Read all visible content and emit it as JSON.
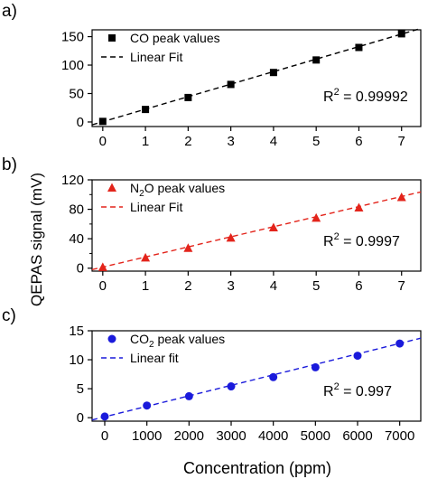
{
  "ylabel": "QEPAS signal (mV)",
  "xlabel": "Concentration (ppm)",
  "chart_data": [
    {
      "panel_label": "a)",
      "type": "scatter",
      "x": [
        0,
        1,
        2,
        3,
        4,
        5,
        6,
        7
      ],
      "xlim": [
        -0.25,
        7.45
      ],
      "xticks": [
        0,
        1,
        2,
        3,
        4,
        5,
        6,
        7
      ],
      "ylim": [
        -8,
        162
      ],
      "yticks": [
        0,
        50,
        100,
        150
      ],
      "color": "#000000",
      "marker": "square",
      "series": [
        {
          "name": "CO peak values",
          "values": [
            1,
            22,
            43,
            66,
            87,
            109,
            131,
            155
          ]
        }
      ],
      "fit": {
        "name": "Linear Fit",
        "slope": 22.0,
        "intercept": 0.5
      },
      "r2_label": "R",
      "r2_sup": "2",
      "r2_value": " = 0.99992",
      "legend_placement": "top-left"
    },
    {
      "panel_label": "b)",
      "type": "scatter",
      "x": [
        0,
        1,
        2,
        3,
        4,
        5,
        6,
        7
      ],
      "xlim": [
        -0.25,
        7.45
      ],
      "xticks": [
        0,
        1,
        2,
        3,
        4,
        5,
        6,
        7
      ],
      "ylim": [
        -4,
        120
      ],
      "yticks": [
        0,
        40,
        80,
        120
      ],
      "yminor": [
        20,
        60,
        100
      ],
      "color": "#e3241b",
      "marker": "triangle",
      "series": [
        {
          "name": "N2O peak values",
          "name_main": "N",
          "name_sub": "2",
          "name_rest": "O peak values",
          "values": [
            1,
            14,
            27,
            41,
            55,
            68,
            82,
            96
          ]
        }
      ],
      "fit": {
        "name": "Linear Fit",
        "slope": 13.7,
        "intercept": 1.5
      },
      "r2_label": "R",
      "r2_sup": "2",
      "r2_value": " = 0.9997",
      "legend_placement": "top-left"
    },
    {
      "panel_label": "c)",
      "type": "scatter",
      "x": [
        0,
        1000,
        2000,
        3000,
        4000,
        5000,
        6000,
        7000
      ],
      "xlim": [
        -300,
        7500
      ],
      "xticks": [
        0,
        1000,
        2000,
        3000,
        4000,
        5000,
        6000,
        7000
      ],
      "ylim": [
        -0.6,
        15
      ],
      "yticks": [
        0,
        5,
        10,
        15
      ],
      "color": "#1a1adb",
      "marker": "circle",
      "series": [
        {
          "name": "CO2 peak values",
          "name_main": "CO",
          "name_sub": "2",
          "name_rest": " peak values",
          "values": [
            0.2,
            2.1,
            3.7,
            5.4,
            7.0,
            8.7,
            10.7,
            12.8
          ]
        }
      ],
      "fit": {
        "name": "Linear fit",
        "slope": 0.00181,
        "intercept": 0.15
      },
      "r2_label": "R",
      "r2_sup": "2",
      "r2_value": " = 0.997",
      "legend_placement": "top-left"
    }
  ]
}
